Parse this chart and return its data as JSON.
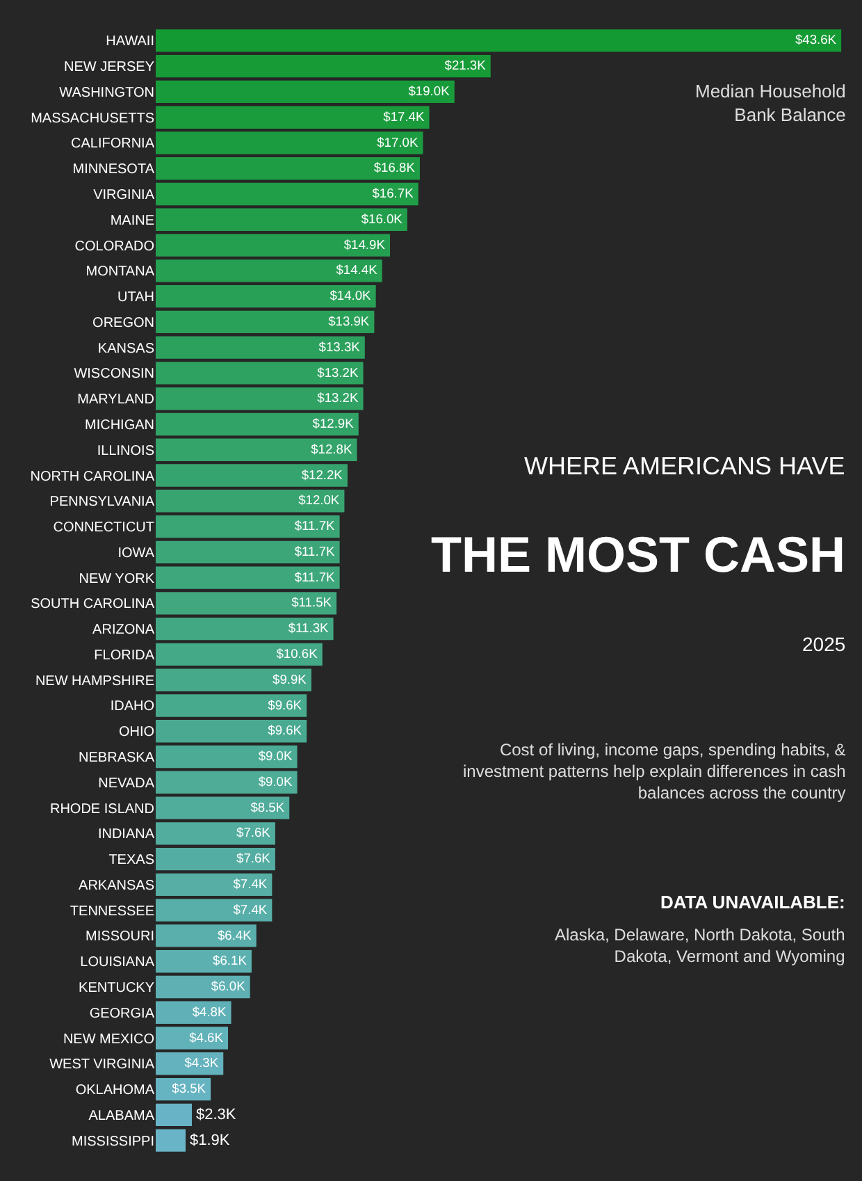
{
  "chart_data": {
    "type": "bar",
    "orientation": "horizontal",
    "title": "WHERE AMERICANS HAVE",
    "subtitle": "THE MOST CASH",
    "categories": [
      "HAWAII",
      "NEW JERSEY",
      "WASHINGTON",
      "MASSACHUSETTS",
      "CALIFORNIA",
      "MINNESOTA",
      "VIRGINIA",
      "MAINE",
      "COLORADO",
      "MONTANA",
      "UTAH",
      "OREGON",
      "KANSAS",
      "WISCONSIN",
      "MARYLAND",
      "MICHIGAN",
      "ILLINOIS",
      "NORTH CAROLINA",
      "PENNSYLVANIA",
      "CONNECTICUT",
      "IOWA",
      "NEW YORK",
      "SOUTH CAROLINA",
      "ARIZONA",
      "FLORIDA",
      "NEW HAMPSHIRE",
      "IDAHO",
      "OHIO",
      "NEBRASKA",
      "NEVADA",
      "RHODE ISLAND",
      "INDIANA",
      "TEXAS",
      "ARKANSAS",
      "TENNESSEE",
      "MISSOURI",
      "LOUISIANA",
      "KENTUCKY",
      "GEORGIA",
      "NEW MEXICO",
      "WEST VIRGINIA",
      "OKLAHOMA",
      "ALABAMA",
      "MISSISSIPPI"
    ],
    "values": [
      43.6,
      21.3,
      19.0,
      17.4,
      17.0,
      16.8,
      16.7,
      16.0,
      14.9,
      14.4,
      14.0,
      13.9,
      13.3,
      13.2,
      13.2,
      12.9,
      12.8,
      12.2,
      12.0,
      11.7,
      11.7,
      11.7,
      11.5,
      11.3,
      10.6,
      9.9,
      9.6,
      9.6,
      9.0,
      9.0,
      8.5,
      7.6,
      7.6,
      7.4,
      7.4,
      6.4,
      6.1,
      6.0,
      4.8,
      4.6,
      4.3,
      3.5,
      2.3,
      1.9
    ],
    "value_labels": [
      "$43.6K",
      "$21.3K",
      "$19.0K",
      "$17.4K",
      "$17.0K",
      "$16.8K",
      "$16.7K",
      "$16.0K",
      "$14.9K",
      "$14.4K",
      "$14.0K",
      "$13.9K",
      "$13.3K",
      "$13.2K",
      "$13.2K",
      "$12.9K",
      "$12.8K",
      "$12.2K",
      "$12.0K",
      "$11.7K",
      "$11.7K",
      "$11.7K",
      "$11.5K",
      "$11.3K",
      "$10.6K",
      "$9.9K",
      "$9.6K",
      "$9.6K",
      "$9.0K",
      "$9.0K",
      "$8.5K",
      "$7.6K",
      "$7.6K",
      "$7.4K",
      "$7.4K",
      "$6.4K",
      "$6.1K",
      "$6.0K",
      "$4.8K",
      "$4.6K",
      "$4.3K",
      "$3.5K",
      "$2.3K",
      "$1.9K"
    ],
    "colors": [
      "#149a33",
      "#169b36",
      "#189b3a",
      "#1a9c3d",
      "#1c9c41",
      "#1e9d44",
      "#209e48",
      "#229e4b",
      "#249f4f",
      "#269f52",
      "#28a056",
      "#2aa159",
      "#2ca15d",
      "#2ea260",
      "#30a264",
      "#32a367",
      "#34a46a",
      "#36a46e",
      "#38a571",
      "#3aa575",
      "#3ca678",
      "#3ea77c",
      "#40a77f",
      "#42a883",
      "#44a986",
      "#46a98a",
      "#48aa8d",
      "#4aaa91",
      "#4cab94",
      "#4eac97",
      "#50ac9b",
      "#52ad9e",
      "#54ada2",
      "#56aea5",
      "#58afa9",
      "#5aafac",
      "#5cb0b0",
      "#5eb0b3",
      "#60b1b7",
      "#62b2ba",
      "#64b2be",
      "#66b3c1",
      "#68b3c5",
      "#6ab4c8"
    ],
    "annotations": [
      "Median Household Bank Balance",
      "2025",
      "Cost of living, income gaps, spending habits, & investment patterns help explain differences in cash balances across the country",
      "DATA UNAVAILABLE:",
      "Alaska, Delaware, North Dakota, South Dakota, Vermont and Wyoming"
    ],
    "legend": false,
    "grid": false,
    "tick_labels": "y"
  }
}
